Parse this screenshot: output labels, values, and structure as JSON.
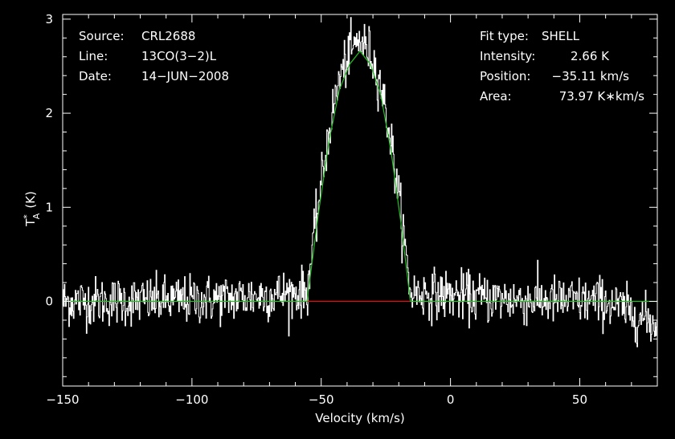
{
  "chart_data": {
    "type": "line",
    "xlabel": "Velocity (km/s)",
    "ylabel": "T",
    "ylabel_sup": "*",
    "ylabel_sub": "A",
    "ylabel_unit": "(K)",
    "xlim": [
      -150,
      80
    ],
    "ylim": [
      -0.9,
      3.05
    ],
    "x_ticks_major": [
      -150,
      -100,
      -50,
      0,
      50
    ],
    "x_tick_labels": [
      "−150",
      "−100",
      "−50",
      "0",
      "50"
    ],
    "y_ticks_major": [
      0,
      1,
      2,
      3
    ],
    "y_tick_labels": [
      "0",
      "1",
      "2",
      "3"
    ],
    "grid": false,
    "colors": {
      "background": "#000000",
      "axes": "#ffffff",
      "spectrum": "#ffffff",
      "fit": "#22c022",
      "baseline": "#e01010"
    },
    "info_left": [
      {
        "label": "Source:",
        "value": "CRL2688"
      },
      {
        "label": "Line:",
        "value": "13CO(3−2)L"
      },
      {
        "label": "Date:",
        "value": "14−JUN−2008"
      }
    ],
    "info_right": [
      {
        "label": "Fit type:",
        "value": "SHELL"
      },
      {
        "label": "Intensity:",
        "value": "2.66 K"
      },
      {
        "label": "Position:",
        "value": "−35.11 km/s"
      },
      {
        "label": "Area:",
        "value": "73.97 K∗km/s"
      }
    ],
    "fit_model": {
      "kind": "shell",
      "center": -35.11,
      "peak": 2.66,
      "x": [
        -150,
        -55.5,
        -51,
        -47,
        -43,
        -39,
        -35,
        -31,
        -27,
        -23,
        -19,
        -15.5,
        80
      ],
      "y": [
        0,
        0,
        0.95,
        1.7,
        2.25,
        2.52,
        2.66,
        2.52,
        2.2,
        1.6,
        0.8,
        0,
        0
      ]
    },
    "baseline_segment": {
      "x": [
        -55.5,
        -15.5
      ],
      "y": [
        0,
        0
      ]
    },
    "spectrum_noise": {
      "channel_width": 0.25,
      "rms": 0.13,
      "wing_excess": 0.12,
      "tail_drop_from": 60,
      "tail_drop_to": -0.5
    }
  }
}
